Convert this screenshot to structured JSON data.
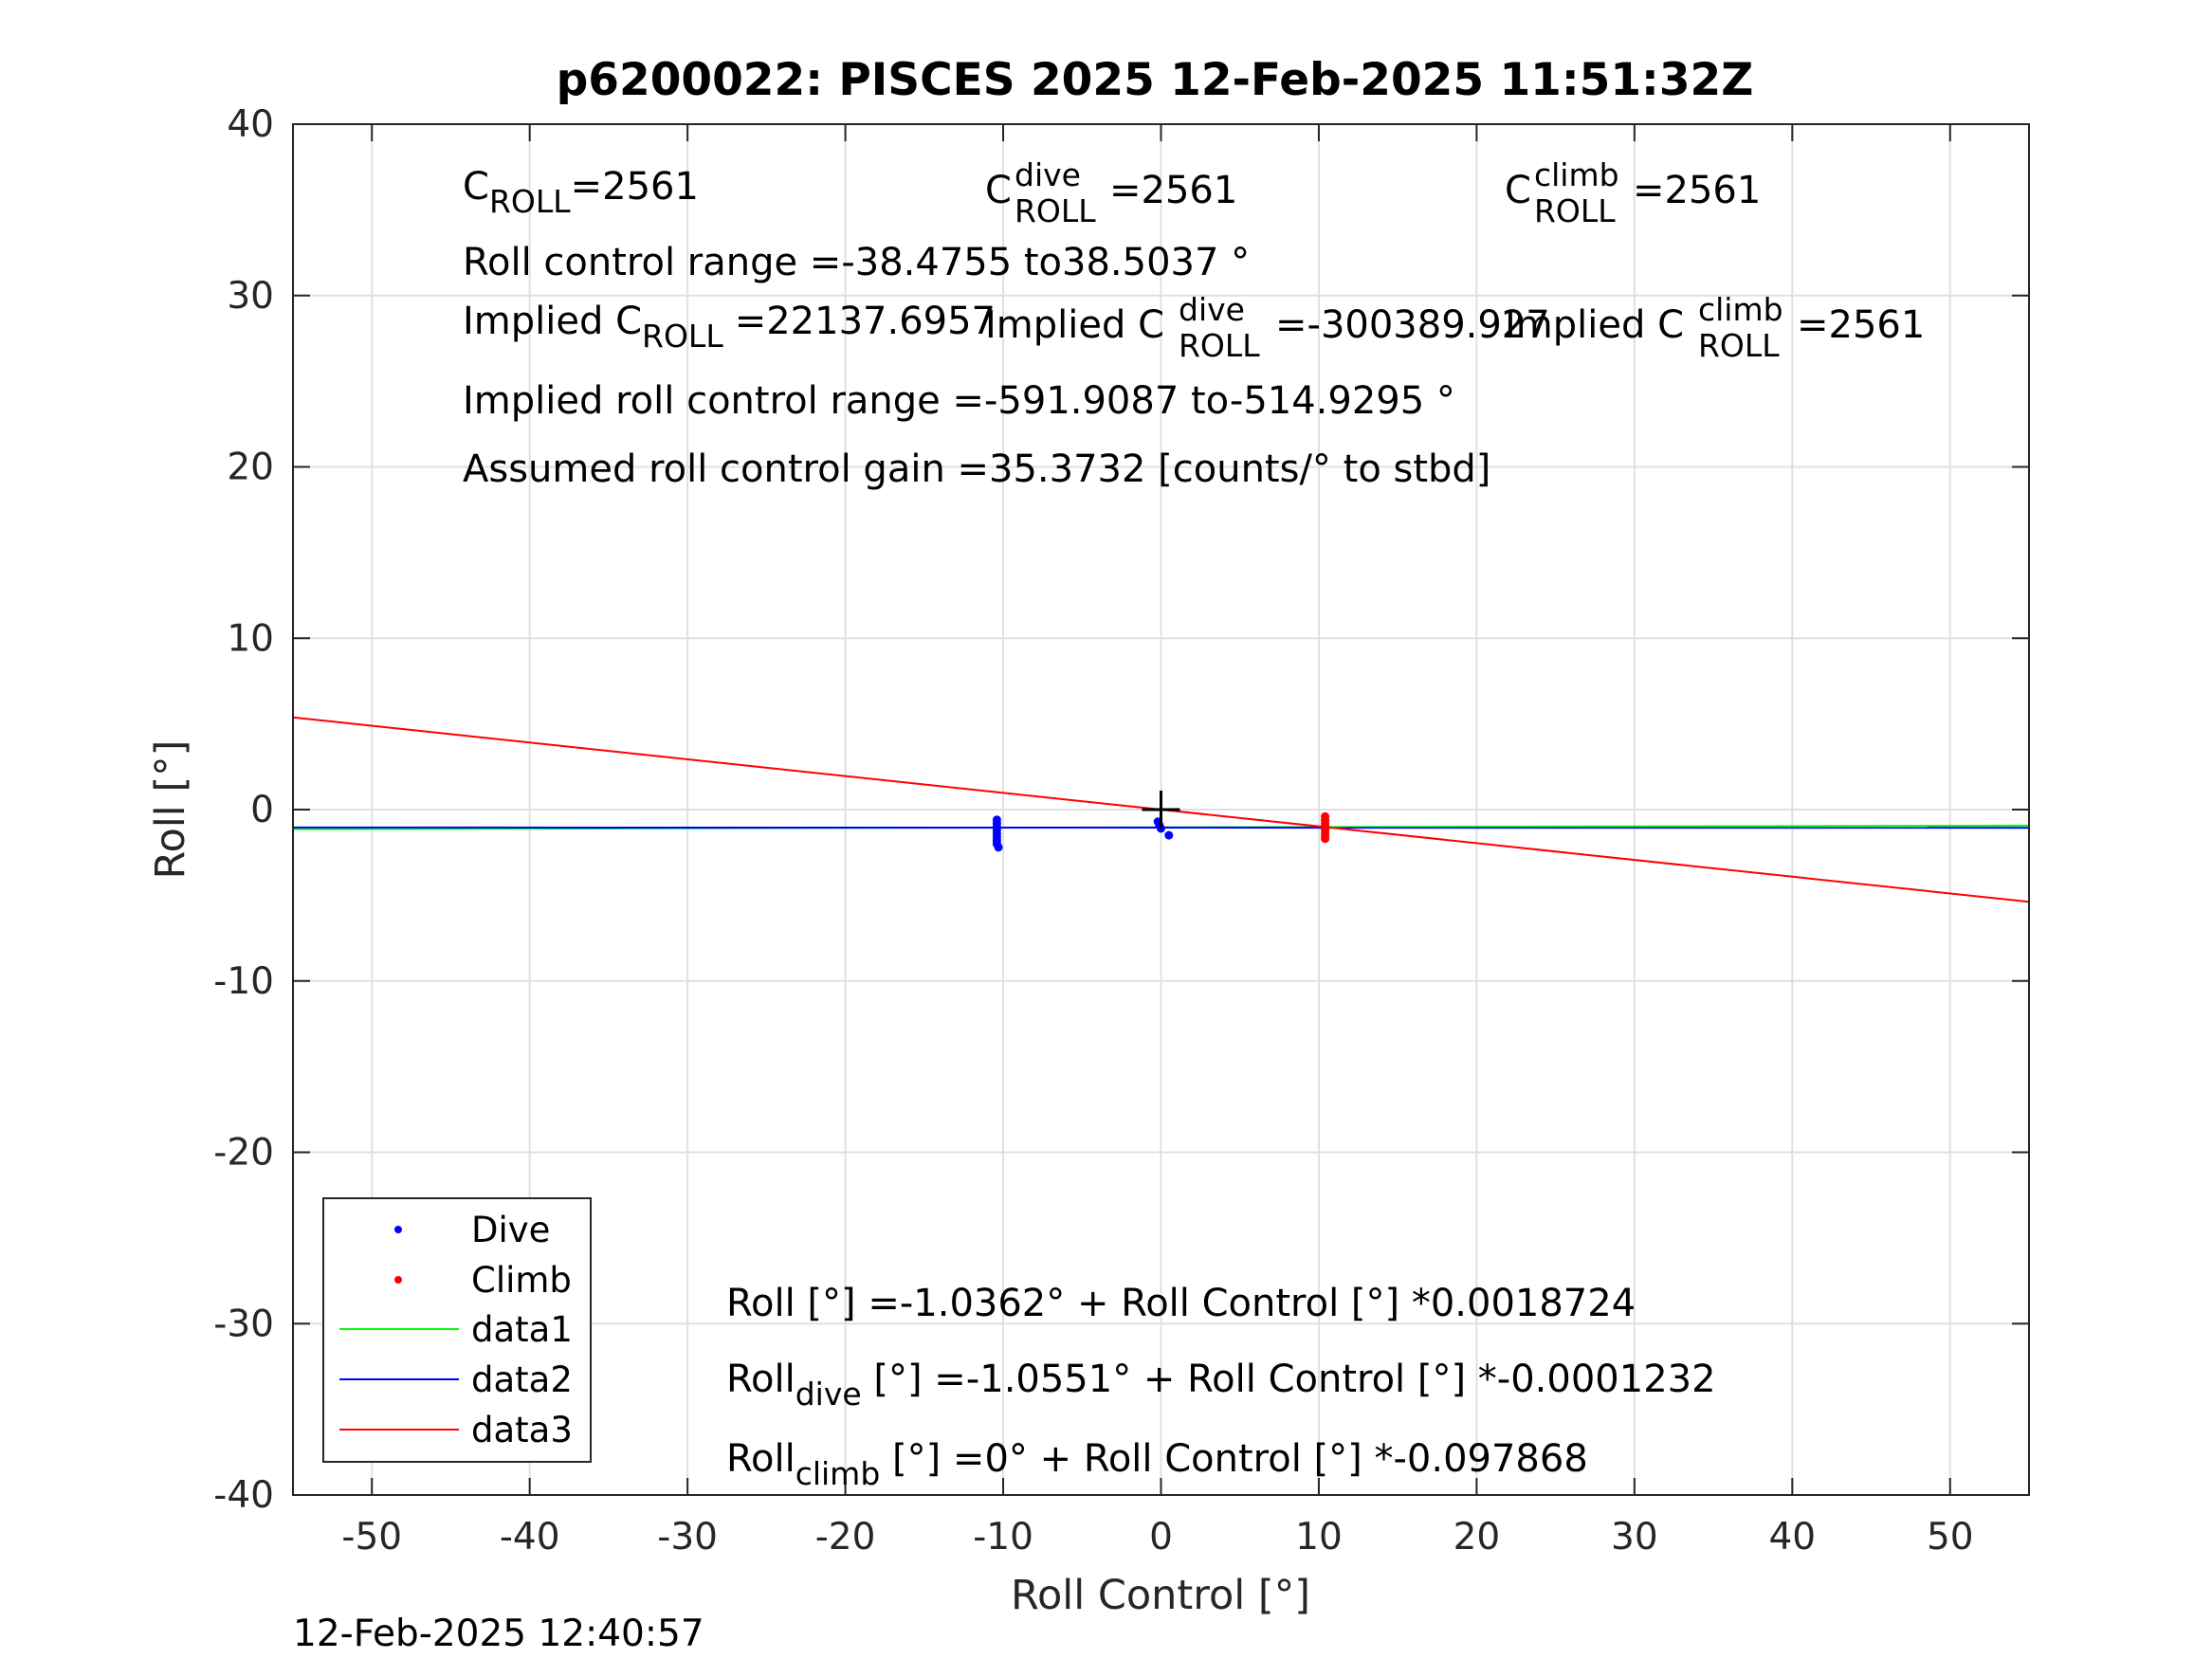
{
  "chart_data": {
    "type": "scatter",
    "title": "p6200022: PISCES 2025 12-Feb-2025 11:51:32Z",
    "xlabel": "Roll Control [°]",
    "ylabel": "Roll [°]",
    "xlim": [
      -55,
      55
    ],
    "ylim": [
      -40,
      40
    ],
    "x_ticks": [
      "-50",
      "-40",
      "-30",
      "-20",
      "-10",
      "0",
      "10",
      "20",
      "30",
      "40",
      "50"
    ],
    "y_ticks": [
      "40",
      "30",
      "20",
      "10",
      "0",
      "-10",
      "-20",
      "-30",
      "-40"
    ],
    "grid": true,
    "legend_position": "bottom-left",
    "legend": [
      "Dive",
      "Climb",
      "data1",
      "data2",
      "data3"
    ],
    "colors": {
      "dive": "#0000ff",
      "climb": "#ff0000",
      "data1": "#00ff00",
      "data2": "#0000ff",
      "data3": "#ff0000",
      "marker": "#000000"
    },
    "series": [
      {
        "name": "Dive",
        "kind": "points",
        "x": [
          -10.4,
          -10.4,
          -10.4,
          -10.4,
          -10.4,
          -10.4,
          -10.4,
          -10.4,
          -10.3,
          -0.2,
          -0.1,
          0.0,
          0.5
        ],
        "y": [
          -0.6,
          -0.8,
          -1.0,
          -1.2,
          -1.4,
          -1.6,
          -1.8,
          -2.0,
          -2.2,
          -0.7,
          -0.9,
          -1.1,
          -1.5
        ]
      },
      {
        "name": "Climb",
        "kind": "points",
        "x": [
          10.4,
          10.4,
          10.4,
          10.4,
          10.4,
          10.4,
          10.4,
          10.4
        ],
        "y": [
          -0.4,
          -0.6,
          -0.8,
          -1.0,
          -1.2,
          -1.4,
          -1.6,
          -1.7
        ]
      },
      {
        "name": "data1",
        "kind": "line",
        "x": [
          -55,
          55
        ],
        "y": [
          -1.1392,
          -0.9332
        ]
      },
      {
        "name": "data2",
        "kind": "line",
        "x": [
          -55,
          55
        ],
        "y": [
          -1.0483,
          -1.0619
        ]
      },
      {
        "name": "data3",
        "kind": "line",
        "x": [
          -55,
          55
        ],
        "y": [
          5.3827,
          -5.3827
        ]
      }
    ],
    "reference_marker": {
      "x": 0,
      "y": 0,
      "symbol": "+"
    }
  },
  "annotations": {
    "c_roll": {
      "base": "C",
      "sub": "ROLL",
      "value": "=2561"
    },
    "c_roll_dive": {
      "base": "C",
      "sup": "dive",
      "sub": "ROLL",
      "value": "=2561"
    },
    "c_roll_climb": {
      "base": "C",
      "sup": "climb",
      "sub": "ROLL",
      "value": "=2561"
    },
    "roll_control_range": "Roll control range =-38.4755 to38.5037 °",
    "implied_c_roll": {
      "base": "Implied C",
      "sub": "ROLL",
      "value": "=22137.6957"
    },
    "implied_c_roll_dive": {
      "base": "Implied C",
      "sup": "dive",
      "sub": "ROLL",
      "value": "=-300389.927"
    },
    "implied_c_roll_climb": {
      "base": "Implied C",
      "sup": "climb",
      "sub": "ROLL",
      "value": "=2561"
    },
    "implied_range": "Implied roll control range =-591.9087 to-514.9295 °",
    "assumed_gain": "Assumed roll control gain =35.3732 [counts/° to stbd]",
    "fit_all": "Roll [°] =-1.0362° + Roll Control [°] *0.0018724",
    "fit_dive": {
      "base": "Roll",
      "sub": "dive",
      "value": " [°] =-1.0551° + Roll Control [°] *-0.0001232"
    },
    "fit_climb": {
      "base": "Roll",
      "sub": "climb",
      "value": " [°] =0° + Roll Control [°] *-0.097868"
    }
  },
  "timestamp": "12-Feb-2025 12:40:57"
}
